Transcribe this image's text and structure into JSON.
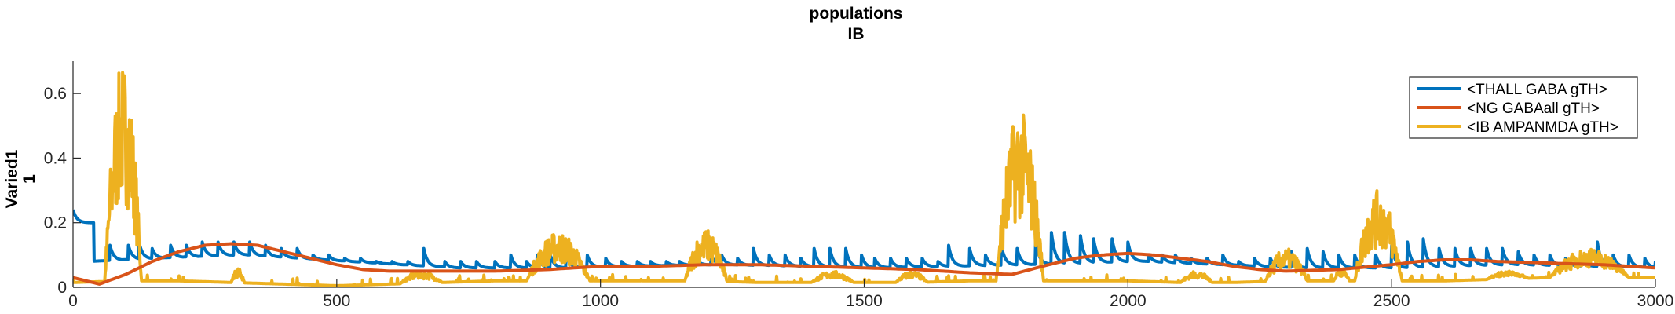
{
  "chart_data": {
    "type": "line",
    "title": [
      "populations",
      "IB"
    ],
    "xlabel": "",
    "ylabel": [
      "Varied1",
      "1"
    ],
    "xlim": [
      0,
      3000
    ],
    "ylim": [
      0,
      0.7
    ],
    "x_ticks": [
      0,
      500,
      1000,
      1500,
      2000,
      2500,
      3000
    ],
    "y_ticks": [
      0,
      0.2,
      0.4,
      0.6
    ],
    "x_tick_labels": [
      "0",
      "500",
      "1000",
      "1500",
      "2000",
      "2500",
      "3000"
    ],
    "y_tick_labels": [
      "0",
      "0.2",
      "0.4",
      "0.6"
    ],
    "grid": false,
    "legend_position": "top-right",
    "series": [
      {
        "name": "<THALL GABA gTH>",
        "color": "#0072BD",
        "baseline": [
          [
            0,
            0.2
          ],
          [
            30,
            0.08
          ],
          [
            150,
            0.09
          ],
          [
            300,
            0.1
          ],
          [
            500,
            0.08
          ],
          [
            700,
            0.06
          ],
          [
            900,
            0.06
          ],
          [
            1200,
            0.07
          ],
          [
            1500,
            0.06
          ],
          [
            1800,
            0.07
          ],
          [
            2000,
            0.08
          ],
          [
            2300,
            0.06
          ],
          [
            2500,
            0.06
          ],
          [
            2700,
            0.07
          ],
          [
            3000,
            0.06
          ]
        ],
        "spikes": [
          [
            0,
            0.24
          ],
          [
            70,
            0.13
          ],
          [
            105,
            0.13
          ],
          [
            125,
            0.14
          ],
          [
            150,
            0.12
          ],
          [
            185,
            0.13
          ],
          [
            215,
            0.13
          ],
          [
            245,
            0.14
          ],
          [
            275,
            0.14
          ],
          [
            305,
            0.14
          ],
          [
            335,
            0.14
          ],
          [
            365,
            0.13
          ],
          [
            395,
            0.12
          ],
          [
            425,
            0.12
          ],
          [
            455,
            0.1
          ],
          [
            485,
            0.1
          ],
          [
            515,
            0.09
          ],
          [
            545,
            0.09
          ],
          [
            575,
            0.08
          ],
          [
            605,
            0.08
          ],
          [
            635,
            0.08
          ],
          [
            665,
            0.12
          ],
          [
            705,
            0.08
          ],
          [
            735,
            0.08
          ],
          [
            765,
            0.08
          ],
          [
            800,
            0.08
          ],
          [
            830,
            0.1
          ],
          [
            860,
            0.08
          ],
          [
            880,
            0.1
          ],
          [
            905,
            0.1
          ],
          [
            935,
            0.1
          ],
          [
            975,
            0.1
          ],
          [
            1010,
            0.09
          ],
          [
            1040,
            0.08
          ],
          [
            1070,
            0.08
          ],
          [
            1095,
            0.08
          ],
          [
            1125,
            0.08
          ],
          [
            1150,
            0.08
          ],
          [
            1180,
            0.09
          ],
          [
            1210,
            0.1
          ],
          [
            1230,
            0.1
          ],
          [
            1260,
            0.09
          ],
          [
            1290,
            0.12
          ],
          [
            1320,
            0.1
          ],
          [
            1350,
            0.1
          ],
          [
            1380,
            0.09
          ],
          [
            1405,
            0.12
          ],
          [
            1435,
            0.12
          ],
          [
            1465,
            0.12
          ],
          [
            1495,
            0.1
          ],
          [
            1520,
            0.09
          ],
          [
            1550,
            0.09
          ],
          [
            1580,
            0.09
          ],
          [
            1610,
            0.09
          ],
          [
            1640,
            0.08
          ],
          [
            1660,
            0.13
          ],
          [
            1700,
            0.12
          ],
          [
            1730,
            0.1
          ],
          [
            1760,
            0.13
          ],
          [
            1790,
            0.12
          ],
          [
            1825,
            0.14
          ],
          [
            1855,
            0.17
          ],
          [
            1880,
            0.17
          ],
          [
            1910,
            0.16
          ],
          [
            1935,
            0.15
          ],
          [
            1970,
            0.15
          ],
          [
            2000,
            0.14
          ],
          [
            2040,
            0.1
          ],
          [
            2065,
            0.1
          ],
          [
            2090,
            0.1
          ],
          [
            2120,
            0.09
          ],
          [
            2150,
            0.09
          ],
          [
            2180,
            0.1
          ],
          [
            2210,
            0.08
          ],
          [
            2240,
            0.09
          ],
          [
            2270,
            0.09
          ],
          [
            2310,
            0.11
          ],
          [
            2340,
            0.12
          ],
          [
            2370,
            0.11
          ],
          [
            2400,
            0.1
          ],
          [
            2430,
            0.1
          ],
          [
            2470,
            0.1
          ],
          [
            2500,
            0.13
          ],
          [
            2530,
            0.14
          ],
          [
            2560,
            0.15
          ],
          [
            2590,
            0.12
          ],
          [
            2620,
            0.12
          ],
          [
            2650,
            0.12
          ],
          [
            2680,
            0.12
          ],
          [
            2710,
            0.12
          ],
          [
            2740,
            0.11
          ],
          [
            2770,
            0.1
          ],
          [
            2800,
            0.1
          ],
          [
            2830,
            0.09
          ],
          [
            2860,
            0.09
          ],
          [
            2890,
            0.14
          ],
          [
            2920,
            0.1
          ],
          [
            2950,
            0.1
          ],
          [
            2980,
            0.09
          ],
          [
            3000,
            0.08
          ]
        ]
      },
      {
        "name": "<NG GABAall gTH>",
        "color": "#D95319",
        "points": [
          [
            0,
            0.03
          ],
          [
            50,
            0.01
          ],
          [
            100,
            0.04
          ],
          [
            150,
            0.08
          ],
          [
            200,
            0.11
          ],
          [
            250,
            0.13
          ],
          [
            300,
            0.135
          ],
          [
            350,
            0.13
          ],
          [
            400,
            0.11
          ],
          [
            450,
            0.09
          ],
          [
            500,
            0.07
          ],
          [
            550,
            0.055
          ],
          [
            600,
            0.05
          ],
          [
            650,
            0.05
          ],
          [
            700,
            0.05
          ],
          [
            800,
            0.05
          ],
          [
            900,
            0.055
          ],
          [
            1000,
            0.065
          ],
          [
            1100,
            0.065
          ],
          [
            1200,
            0.07
          ],
          [
            1300,
            0.07
          ],
          [
            1400,
            0.065
          ],
          [
            1500,
            0.06
          ],
          [
            1600,
            0.055
          ],
          [
            1700,
            0.045
          ],
          [
            1780,
            0.04
          ],
          [
            1850,
            0.07
          ],
          [
            1900,
            0.09
          ],
          [
            1950,
            0.1
          ],
          [
            2000,
            0.105
          ],
          [
            2050,
            0.1
          ],
          [
            2100,
            0.09
          ],
          [
            2150,
            0.08
          ],
          [
            2200,
            0.065
          ],
          [
            2250,
            0.055
          ],
          [
            2300,
            0.05
          ],
          [
            2400,
            0.055
          ],
          [
            2500,
            0.07
          ],
          [
            2550,
            0.08
          ],
          [
            2600,
            0.085
          ],
          [
            2650,
            0.085
          ],
          [
            2700,
            0.08
          ],
          [
            2800,
            0.075
          ],
          [
            2900,
            0.07
          ],
          [
            3000,
            0.06
          ]
        ]
      },
      {
        "name": "<IB AMPANMDA gTH>",
        "color": "#EDB120",
        "baseline": [
          [
            0,
            0.015
          ],
          [
            100,
            0.02
          ],
          [
            200,
            0.02
          ],
          [
            300,
            0.015
          ],
          [
            400,
            0.01
          ],
          [
            500,
            0.005
          ],
          [
            600,
            0.01
          ],
          [
            700,
            0.015
          ],
          [
            800,
            0.02
          ],
          [
            900,
            0.02
          ],
          [
            1000,
            0.02
          ],
          [
            1100,
            0.02
          ],
          [
            1200,
            0.02
          ],
          [
            1300,
            0.015
          ],
          [
            1400,
            0.015
          ],
          [
            1500,
            0.015
          ],
          [
            1600,
            0.015
          ],
          [
            1700,
            0.02
          ],
          [
            1800,
            0.02
          ],
          [
            1900,
            0.02
          ],
          [
            2000,
            0.02
          ],
          [
            2100,
            0.015
          ],
          [
            2200,
            0.015
          ],
          [
            2300,
            0.02
          ],
          [
            2400,
            0.02
          ],
          [
            2500,
            0.02
          ],
          [
            2600,
            0.02
          ],
          [
            2700,
            0.025
          ],
          [
            2800,
            0.03
          ],
          [
            2900,
            0.03
          ],
          [
            3000,
            0.03
          ]
        ],
        "bursts": [
          [
            60,
            130,
            0.7
          ],
          [
            300,
            325,
            0.06
          ],
          [
            620,
            700,
            0.05
          ],
          [
            860,
            980,
            0.17
          ],
          [
            1160,
            1240,
            0.18
          ],
          [
            1400,
            1480,
            0.05
          ],
          [
            1560,
            1620,
            0.05
          ],
          [
            1750,
            1840,
            0.55
          ],
          [
            2100,
            2160,
            0.05
          ],
          [
            2260,
            2340,
            0.12
          ],
          [
            2390,
            2420,
            0.06
          ],
          [
            2430,
            2520,
            0.3
          ],
          [
            2680,
            2760,
            0.05
          ],
          [
            2800,
            2950,
            0.12
          ]
        ]
      }
    ]
  }
}
